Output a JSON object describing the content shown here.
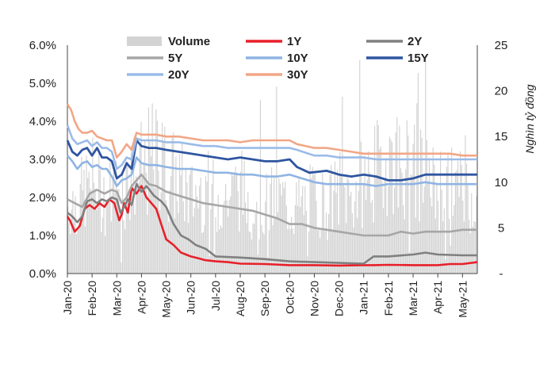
{
  "chart_data": {
    "type": "line",
    "y_left": {
      "ticks": [
        0,
        1,
        2,
        3,
        4,
        5,
        6
      ],
      "tick_labels": [
        "0.0%",
        "1.0%",
        "2.0%",
        "3.0%",
        "4.0%",
        "5.0%",
        "6.0%"
      ],
      "range": [
        0,
        6
      ]
    },
    "y_right": {
      "title": "Nghìn tỷ đồng",
      "ticks": [
        0,
        5,
        10,
        15,
        20,
        25
      ],
      "tick_labels": [
        "-",
        "5",
        "10",
        "15",
        "20",
        "25"
      ],
      "range": [
        0,
        25
      ]
    },
    "x_tick_labels": [
      "Jan-20",
      "Feb-20",
      "Mar-20",
      "Apr-20",
      "May-20",
      "Jun-20",
      "Jul-20",
      "Aug-20",
      "Sep-20",
      "Oct-20",
      "Nov-20",
      "Dec-20",
      "Jan-21",
      "Feb-21",
      "Mar-21",
      "Apr-21",
      "May-21"
    ],
    "grid": false,
    "legend_position": "top",
    "volume": {
      "name": "Volume",
      "axis": "right",
      "color": "#d3d3d3",
      "key_x": [
        0,
        0.5,
        1,
        1.5,
        2,
        2.5,
        3,
        3.5,
        4,
        4.5,
        5,
        5.5,
        6,
        6.5,
        7,
        7.5,
        8,
        8.5,
        9,
        9.5,
        10,
        10.5,
        11,
        11.5,
        12,
        12.5,
        13,
        13.5,
        14,
        14.5,
        15,
        15.5,
        16,
        16.5
      ],
      "key_v": [
        8,
        9,
        11,
        9,
        10,
        11,
        12,
        14,
        12,
        11,
        9,
        10,
        9,
        9,
        10,
        8,
        8,
        9,
        8,
        8,
        9,
        8,
        10,
        9,
        11,
        12,
        14,
        13,
        12,
        11,
        10,
        11,
        10,
        9
      ]
    },
    "series": [
      {
        "name": "1Y",
        "color": "#e8202a",
        "width": 2.6,
        "x": [
          0,
          0.1,
          0.3,
          0.5,
          0.7,
          0.9,
          1.1,
          1.3,
          1.5,
          1.7,
          1.9,
          2.1,
          2.2,
          2.3,
          2.45,
          2.6,
          2.8,
          3.0,
          3.2,
          3.4,
          3.6,
          3.8,
          4.0,
          4.3,
          4.6,
          4.8,
          5.0,
          5.3,
          5.6,
          6.0,
          6.5,
          7.0,
          8.0,
          9.0,
          10.0,
          11.0,
          12.0,
          12.4,
          13.0,
          14.0,
          15.0,
          15.5,
          16.0,
          16.6
        ],
        "y": [
          1.5,
          1.4,
          1.1,
          1.25,
          1.7,
          1.8,
          1.7,
          1.85,
          1.75,
          1.95,
          1.85,
          1.4,
          1.55,
          1.85,
          1.6,
          2.25,
          2.1,
          2.3,
          2.0,
          1.85,
          1.7,
          1.3,
          0.9,
          0.75,
          0.55,
          0.5,
          0.45,
          0.4,
          0.35,
          0.32,
          0.3,
          0.26,
          0.25,
          0.22,
          0.22,
          0.21,
          0.22,
          0.22,
          0.23,
          0.22,
          0.22,
          0.25,
          0.25,
          0.3
        ]
      },
      {
        "name": "2Y",
        "color": "#808080",
        "width": 2.6,
        "x": [
          0,
          0.2,
          0.4,
          0.6,
          0.8,
          1.0,
          1.2,
          1.4,
          1.6,
          1.8,
          2.0,
          2.15,
          2.3,
          2.45,
          2.6,
          2.8,
          3.0,
          3.2,
          3.5,
          3.8,
          4.0,
          4.3,
          4.6,
          4.9,
          5.2,
          5.6,
          6.0,
          7.0,
          8.0,
          9.0,
          10.0,
          11.0,
          12.0,
          12.4,
          13.0,
          14.0,
          14.5,
          15.0,
          16.0,
          16.6
        ],
        "y": [
          1.6,
          1.5,
          1.35,
          1.5,
          1.9,
          1.95,
          1.85,
          1.95,
          1.9,
          2.0,
          1.95,
          1.6,
          1.75,
          1.95,
          1.8,
          2.35,
          2.15,
          2.3,
          2.05,
          1.9,
          1.75,
          1.3,
          1.0,
          0.9,
          0.75,
          0.65,
          0.45,
          0.42,
          0.38,
          0.32,
          0.3,
          0.28,
          0.26,
          0.45,
          0.45,
          0.5,
          0.55,
          0.5,
          0.48,
          0.48
        ]
      },
      {
        "name": "5Y",
        "color": "#a6a6a6",
        "width": 2.6,
        "x": [
          0,
          0.3,
          0.6,
          0.9,
          1.2,
          1.5,
          1.8,
          2.0,
          2.2,
          2.4,
          2.6,
          2.8,
          3.0,
          3.3,
          3.6,
          4.0,
          4.5,
          5.0,
          5.5,
          6.0,
          6.5,
          7.0,
          7.5,
          8.0,
          8.5,
          9.0,
          9.5,
          10.0,
          10.5,
          11.0,
          11.5,
          12.0,
          12.5,
          13.0,
          13.5,
          14.0,
          14.5,
          15.0,
          15.5,
          16.0,
          16.6
        ],
        "y": [
          1.95,
          1.85,
          1.75,
          2.1,
          2.2,
          2.1,
          2.2,
          2.15,
          1.85,
          2.0,
          2.3,
          2.45,
          2.6,
          2.35,
          2.3,
          2.15,
          2.05,
          1.95,
          1.85,
          1.8,
          1.75,
          1.7,
          1.65,
          1.55,
          1.45,
          1.3,
          1.3,
          1.2,
          1.15,
          1.1,
          1.05,
          1.0,
          1.0,
          1.0,
          1.1,
          1.05,
          1.1,
          1.1,
          1.1,
          1.15,
          1.15
        ]
      },
      {
        "name": "10Y",
        "color": "#8fb4e3",
        "width": 2.6,
        "x": [
          0,
          0.2,
          0.4,
          0.6,
          0.8,
          1.0,
          1.2,
          1.4,
          1.6,
          1.8,
          2.0,
          2.2,
          2.4,
          2.6,
          2.8,
          3.0,
          3.3,
          3.6,
          4.0,
          4.5,
          5.0,
          5.5,
          6.0,
          6.5,
          7.0,
          7.5,
          8.0,
          8.5,
          9.0,
          9.5,
          10.0,
          10.5,
          11.0,
          11.5,
          12.0,
          12.5,
          13.0,
          13.5,
          14.0,
          14.5,
          15.0,
          15.5,
          16.0,
          16.6
        ],
        "y": [
          3.1,
          2.95,
          2.75,
          2.9,
          2.95,
          2.8,
          2.85,
          2.75,
          2.75,
          2.55,
          2.3,
          2.45,
          2.5,
          2.6,
          3.05,
          2.9,
          2.85,
          2.85,
          2.8,
          2.75,
          2.75,
          2.7,
          2.65,
          2.65,
          2.6,
          2.6,
          2.55,
          2.55,
          2.6,
          2.5,
          2.4,
          2.35,
          2.35,
          2.35,
          2.35,
          2.3,
          2.35,
          2.35,
          2.35,
          2.4,
          2.35,
          2.35,
          2.35,
          2.35
        ]
      },
      {
        "name": "15Y",
        "color": "#2e55a0",
        "width": 2.8,
        "x": [
          0,
          0.2,
          0.4,
          0.6,
          0.8,
          1.0,
          1.2,
          1.4,
          1.6,
          1.8,
          2.0,
          2.2,
          2.4,
          2.6,
          2.8,
          3.0,
          3.3,
          3.6,
          4.0,
          4.5,
          5.0,
          5.5,
          6.0,
          6.5,
          7.0,
          7.5,
          8.0,
          8.5,
          9.0,
          9.3,
          9.8,
          10.5,
          11.0,
          11.5,
          12.0,
          12.5,
          13.0,
          13.5,
          14.0,
          14.5,
          15.0,
          15.5,
          16.0,
          16.6
        ],
        "y": [
          3.5,
          3.2,
          3.1,
          3.25,
          3.3,
          3.1,
          3.3,
          3.05,
          3.05,
          2.95,
          2.5,
          2.6,
          2.9,
          2.75,
          3.5,
          3.35,
          3.3,
          3.3,
          3.25,
          3.2,
          3.15,
          3.1,
          3.05,
          3.0,
          3.05,
          3.0,
          2.95,
          2.95,
          3.0,
          2.8,
          2.65,
          2.7,
          2.6,
          2.55,
          2.6,
          2.55,
          2.45,
          2.45,
          2.5,
          2.6,
          2.6,
          2.6,
          2.6,
          2.6
        ]
      },
      {
        "name": "20Y",
        "color": "#9bbbe8",
        "width": 2.6,
        "x": [
          0,
          0.2,
          0.4,
          0.6,
          0.8,
          1.0,
          1.2,
          1.4,
          1.6,
          1.8,
          2.0,
          2.2,
          2.4,
          2.6,
          2.8,
          3.0,
          3.3,
          3.6,
          4.0,
          4.5,
          5.0,
          5.5,
          6.0,
          6.5,
          7.0,
          7.5,
          8.0,
          8.5,
          9.0,
          9.3,
          10.0,
          10.5,
          11.0,
          11.5,
          12.0,
          12.5,
          13.0,
          13.5,
          14.0,
          14.5,
          15.0,
          15.5,
          16.0,
          16.6
        ],
        "y": [
          3.9,
          3.55,
          3.4,
          3.45,
          3.5,
          3.35,
          3.45,
          3.3,
          3.3,
          3.2,
          2.75,
          2.85,
          3.05,
          3.0,
          3.55,
          3.5,
          3.5,
          3.5,
          3.45,
          3.45,
          3.4,
          3.35,
          3.35,
          3.3,
          3.3,
          3.3,
          3.3,
          3.3,
          3.3,
          3.25,
          3.1,
          3.1,
          3.05,
          3.05,
          3.05,
          3.0,
          3.0,
          3.0,
          3.0,
          3.0,
          3.0,
          3.0,
          3.0,
          3.0
        ]
      },
      {
        "name": "30Y",
        "color": "#f2a686",
        "width": 2.6,
        "x": [
          0,
          0.15,
          0.3,
          0.45,
          0.6,
          0.8,
          1.0,
          1.2,
          1.4,
          1.6,
          1.8,
          2.0,
          2.2,
          2.4,
          2.6,
          2.8,
          3.0,
          3.3,
          3.6,
          4.0,
          4.5,
          5.0,
          5.5,
          6.0,
          6.5,
          7.0,
          7.5,
          8.0,
          8.5,
          9.0,
          9.3,
          10.0,
          10.5,
          11.0,
          11.5,
          12.0,
          12.5,
          13.0,
          13.5,
          14.0,
          14.5,
          15.0,
          15.5,
          16.0,
          16.6
        ],
        "y": [
          4.45,
          4.3,
          4.0,
          3.8,
          3.7,
          3.7,
          3.75,
          3.6,
          3.55,
          3.5,
          3.5,
          3.05,
          3.2,
          3.4,
          3.25,
          3.7,
          3.65,
          3.65,
          3.65,
          3.6,
          3.6,
          3.55,
          3.5,
          3.5,
          3.5,
          3.45,
          3.5,
          3.5,
          3.5,
          3.5,
          3.4,
          3.3,
          3.3,
          3.25,
          3.2,
          3.15,
          3.15,
          3.15,
          3.15,
          3.15,
          3.15,
          3.15,
          3.15,
          3.1,
          3.1
        ]
      }
    ]
  }
}
